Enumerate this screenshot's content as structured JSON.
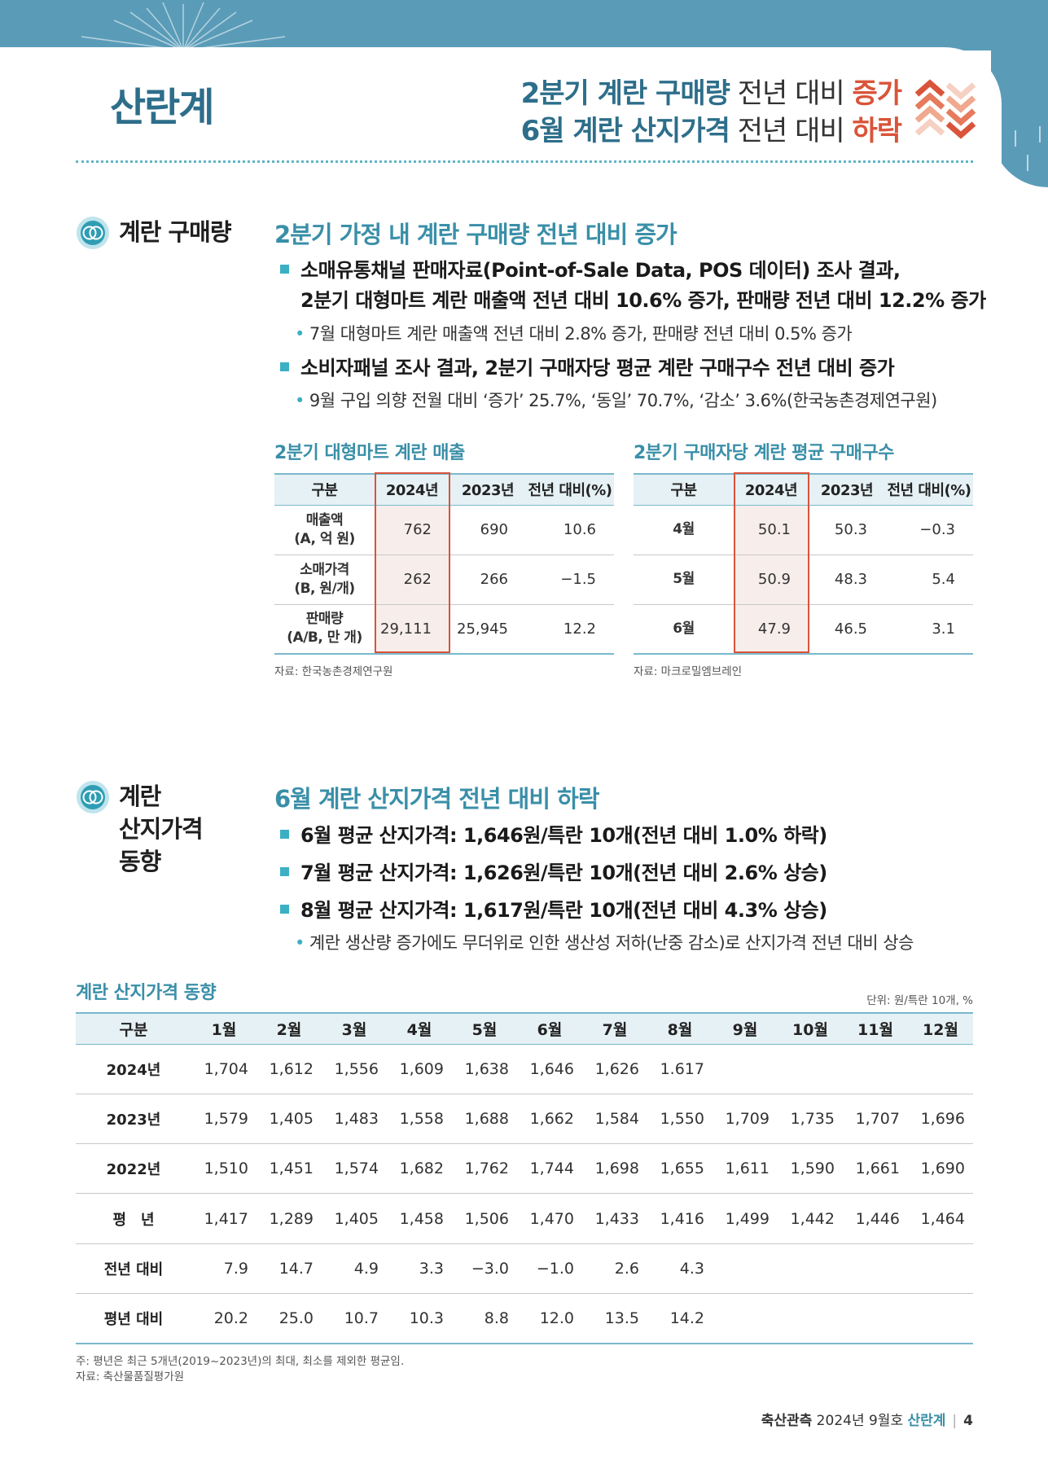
{
  "header": {
    "section_title": "산란계",
    "headline_line1": {
      "bold": "2분기 계란 구매량",
      "regular": " 전년 대비 ",
      "red": "증가"
    },
    "headline_line2": {
      "bold": "6월 계란 산지가격",
      "regular": " 전년 대비 ",
      "red": "하락"
    },
    "colors": {
      "teal": "#2d6e8a",
      "accent": "#3bb0c4",
      "red": "#d9543a",
      "band": "#5a9cb8"
    }
  },
  "purchase": {
    "label": "계란 구매량",
    "heading": "2분기 가정 내 계란 구매량 전년 대비 증가",
    "bullet1_line1": "소매유통채널 판매자료(Point-of-Sale Data, POS 데이터) 조사 결과,",
    "bullet1_line2": "2분기 대형마트 계란 매출액 전년 대비 10.6% 증가, 판매량 전년 대비 12.2% 증가",
    "sub1": "7월 대형마트 계란 매출액 전년 대비 2.8% 증가, 판매량 전년 대비 0.5% 증가",
    "bullet2": "소비자패널 조사 결과, 2분기 구매자당 평균 계란 구매구수 전년 대비 증가",
    "sub2": "9월 구입 의향 전월 대비 ‘증가’ 25.7%, ‘동일’ 70.7%, ‘감소’ 3.6%(한국농촌경제연구원)"
  },
  "sales_table": {
    "title": "2분기 대형마트 계란 매출",
    "headers": [
      "구분",
      "2024년",
      "2023년",
      "전년 대비(%)"
    ],
    "rows": [
      {
        "label1": "매출액",
        "label2": "(A, 억 원)",
        "v2024": "762",
        "v2023": "690",
        "yoy": "10.6"
      },
      {
        "label1": "소매가격",
        "label2": "(B, 원/개)",
        "v2024": "262",
        "v2023": "266",
        "yoy": "−1.5"
      },
      {
        "label1": "판매량",
        "label2": "(A/B, 만 개)",
        "v2024": "29,111",
        "v2023": "25,945",
        "yoy": "12.2"
      }
    ],
    "source": "자료: 한국농촌경제연구원"
  },
  "buyer_table": {
    "title": "2분기 구매자당 계란 평균 구매구수",
    "headers": [
      "구분",
      "2024년",
      "2023년",
      "전년 대비(%)"
    ],
    "rows": [
      {
        "label": "4월",
        "v2024": "50.1",
        "v2023": "50.3",
        "yoy": "−0.3"
      },
      {
        "label": "5월",
        "v2024": "50.9",
        "v2023": "48.3",
        "yoy": "5.4"
      },
      {
        "label": "6월",
        "v2024": "47.9",
        "v2023": "46.5",
        "yoy": "3.1"
      }
    ],
    "source": "자료: 마크로밀엠브레인"
  },
  "price": {
    "label_line1": "계란",
    "label_line2": "산지가격",
    "label_line3": "동향",
    "heading": "6월 계란 산지가격 전년 대비 하락",
    "bullet1": "6월 평균 산지가격: 1,646원/특란 10개(전년 대비 1.0% 하락)",
    "bullet2": "7월 평균 산지가격: 1,626원/특란 10개(전년 대비 2.6% 상승)",
    "bullet3": "8월 평균 산지가격: 1,617원/특란 10개(전년 대비 4.3% 상승)",
    "sub": "계란 생산량 증가에도 무더위로 인한 생산성 저하(난중 감소)로 산지가격 전년 대비 상승"
  },
  "price_table": {
    "title": "계란 산지가격 동향",
    "unit": "단위: 원/특란 10개, %",
    "headers": [
      "구분",
      "1월",
      "2월",
      "3월",
      "4월",
      "5월",
      "6월",
      "7월",
      "8월",
      "9월",
      "10월",
      "11월",
      "12월"
    ],
    "rows": [
      {
        "label": "2024년",
        "values": [
          "1,704",
          "1,612",
          "1,556",
          "1,609",
          "1,638",
          "1,646",
          "1,626",
          "1.617",
          "",
          "",
          "",
          ""
        ]
      },
      {
        "label": "2023년",
        "values": [
          "1,579",
          "1,405",
          "1,483",
          "1,558",
          "1,688",
          "1,662",
          "1,584",
          "1,550",
          "1,709",
          "1,735",
          "1,707",
          "1,696"
        ]
      },
      {
        "label": "2022년",
        "values": [
          "1,510",
          "1,451",
          "1,574",
          "1,682",
          "1,762",
          "1,744",
          "1,698",
          "1,655",
          "1,611",
          "1,590",
          "1,661",
          "1,690"
        ]
      },
      {
        "label": "평　년",
        "values": [
          "1,417",
          "1,289",
          "1,405",
          "1,458",
          "1,506",
          "1,470",
          "1,433",
          "1,416",
          "1,499",
          "1,442",
          "1,446",
          "1,464"
        ]
      },
      {
        "label": "전년 대비",
        "values": [
          "7.9",
          "14.7",
          "4.9",
          "3.3",
          "−3.0",
          "−1.0",
          "2.6",
          "4.3",
          "",
          "",
          "",
          ""
        ]
      },
      {
        "label": "평년 대비",
        "values": [
          "20.2",
          "25.0",
          "10.7",
          "10.3",
          "8.8",
          "12.0",
          "13.5",
          "14.2",
          "",
          "",
          "",
          ""
        ]
      }
    ],
    "note": "주: 평년은 최근 5개년(2019~2023년)의 최대, 최소를 제외한 평균임.",
    "source": "자료: 축산물품질평가원"
  },
  "footer": {
    "magazine": "축산관측",
    "issue": " 2024년 9월호 ",
    "topic": "산란계",
    "separator": "|",
    "page": "4"
  }
}
